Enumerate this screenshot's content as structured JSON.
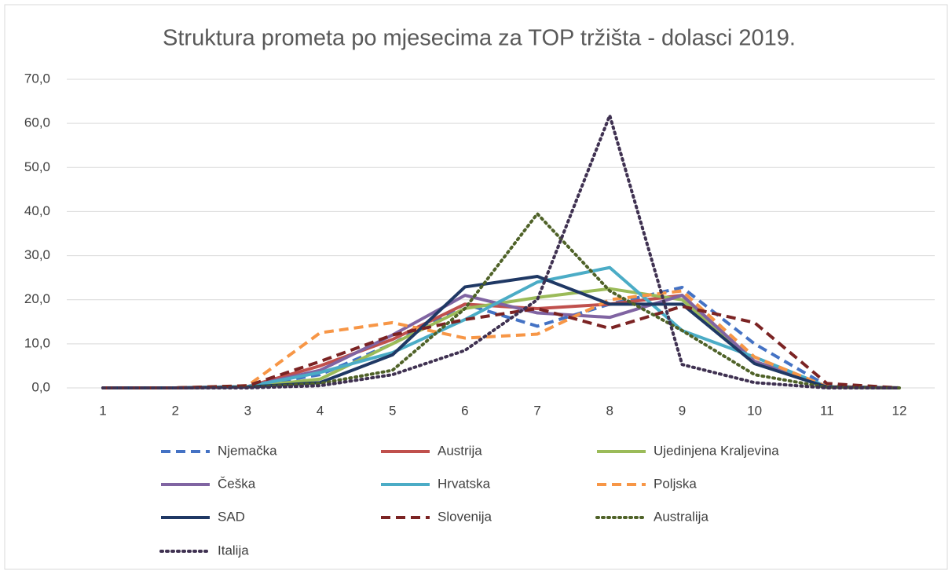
{
  "chart_data": {
    "type": "line",
    "title": "Struktura prometa po mjesecima za TOP tržišta - dolasci 2019.",
    "categories": [
      "1",
      "2",
      "3",
      "4",
      "5",
      "6",
      "7",
      "8",
      "9",
      "10",
      "11",
      "12"
    ],
    "ylim": [
      0,
      70
    ],
    "yticks": [
      {
        "value": 0,
        "label": "0,0"
      },
      {
        "value": 10,
        "label": "10,0"
      },
      {
        "value": 20,
        "label": "20,0"
      },
      {
        "value": 30,
        "label": "30,0"
      },
      {
        "value": 40,
        "label": "40,0"
      },
      {
        "value": 50,
        "label": "50,0"
      },
      {
        "value": 60,
        "label": "60,0"
      },
      {
        "value": 70,
        "label": "70,0"
      }
    ],
    "grid": true,
    "legend": "bottom",
    "series": [
      {
        "name": "Njemačka",
        "color": "#4472c4",
        "dash": "dashed",
        "values": [
          0,
          0,
          0.3,
          3,
          10,
          19,
          14,
          19,
          22.8,
          10,
          0.5,
          0
        ]
      },
      {
        "name": "Austrija",
        "color": "#c0504d",
        "dash": "solid",
        "values": [
          0,
          0,
          0.3,
          5,
          11,
          19,
          18,
          19,
          21,
          6,
          0.3,
          0
        ]
      },
      {
        "name": "Ujedinjena Kraljevina",
        "color": "#9bbb59",
        "dash": "solid",
        "values": [
          0,
          0,
          0.2,
          2,
          10,
          18,
          20.5,
          22.5,
          20,
          6,
          0.3,
          0
        ]
      },
      {
        "name": "Češka",
        "color": "#8064a2",
        "dash": "solid",
        "values": [
          0,
          0,
          0.3,
          4,
          12,
          21,
          17,
          16,
          21,
          6,
          0.3,
          0
        ]
      },
      {
        "name": "Hrvatska",
        "color": "#4bacc6",
        "dash": "solid",
        "values": [
          0,
          0,
          0.3,
          3.5,
          8,
          15.5,
          24,
          27.3,
          13,
          7,
          0.3,
          0
        ]
      },
      {
        "name": "Poljska",
        "color": "#f79646",
        "dash": "dashed",
        "values": [
          0,
          0,
          0.5,
          12.5,
          14.8,
          11.3,
          12.2,
          20,
          22,
          7,
          0.3,
          0
        ]
      },
      {
        "name": "SAD",
        "color": "#1f3864",
        "dash": "solid",
        "values": [
          0,
          0,
          0.2,
          1.2,
          7.5,
          22.9,
          25.3,
          19,
          19,
          5.5,
          0.2,
          0
        ]
      },
      {
        "name": "Slovenija",
        "color": "#7b2323",
        "dash": "dashed",
        "values": [
          0,
          0,
          0.5,
          6,
          12,
          15.5,
          18,
          13.5,
          18.5,
          14.8,
          1,
          0
        ]
      },
      {
        "name": "Australija",
        "color": "#4f6228",
        "dash": "dotted",
        "values": [
          0,
          0,
          0.1,
          1,
          4,
          18,
          39.5,
          22,
          13,
          3,
          0.1,
          0
        ]
      },
      {
        "name": "Italija",
        "color": "#3f3151",
        "dash": "dotted",
        "values": [
          0,
          0,
          0,
          0.5,
          3,
          8.5,
          20,
          61.8,
          5.3,
          1.2,
          0,
          0
        ]
      }
    ]
  }
}
